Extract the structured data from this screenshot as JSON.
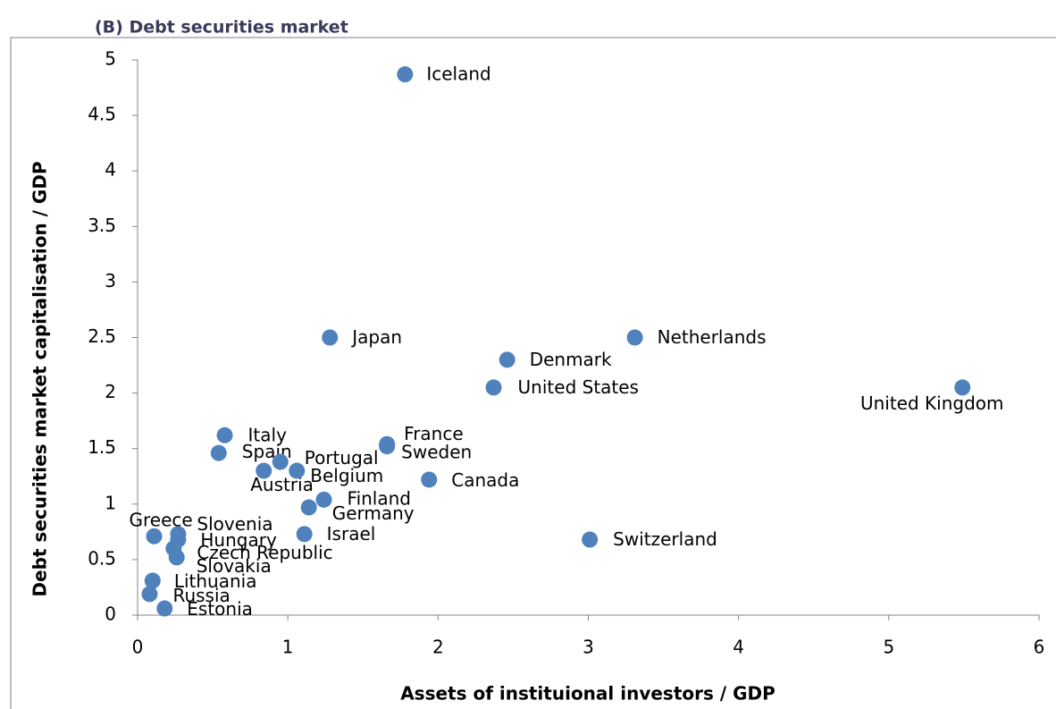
{
  "chart_data": {
    "type": "scatter",
    "title": "(B) Debt securities market",
    "x_label": "Assets of instituional investors / GDP",
    "y_label": "Debt securities market capitalisation / GDP",
    "color": "#4f81bd",
    "xlim": [
      0,
      6
    ],
    "xticks": [
      0,
      1,
      2,
      3,
      4,
      5,
      6
    ],
    "ylim": [
      0,
      5
    ],
    "yticks": [
      0,
      0.5,
      1,
      1.5,
      2,
      2.5,
      3,
      3.5,
      4,
      4.5,
      5
    ],
    "grid": false,
    "points": [
      {
        "label": "Iceland",
        "x": 1.78,
        "y": 4.87
      },
      {
        "label": "Japan",
        "x": 1.28,
        "y": 2.5
      },
      {
        "label": "Netherlands",
        "x": 3.31,
        "y": 2.5
      },
      {
        "label": "Denmark",
        "x": 2.46,
        "y": 2.3
      },
      {
        "label": "United States",
        "x": 2.37,
        "y": 2.05
      },
      {
        "label": "United Kingdom",
        "x": 5.49,
        "y": 2.05
      },
      {
        "label": "Italy",
        "x": 0.58,
        "y": 1.62
      },
      {
        "label": "France",
        "x": 1.66,
        "y": 1.54
      },
      {
        "label": "Sweden",
        "x": 1.66,
        "y": 1.52
      },
      {
        "label": "Spain",
        "x": 0.54,
        "y": 1.46
      },
      {
        "label": "Portugal",
        "x": 0.95,
        "y": 1.38
      },
      {
        "label": "Austria",
        "x": 0.84,
        "y": 1.3
      },
      {
        "label": "Belgium",
        "x": 1.06,
        "y": 1.3
      },
      {
        "label": "Canada",
        "x": 1.94,
        "y": 1.22
      },
      {
        "label": "Finland",
        "x": 1.24,
        "y": 1.04
      },
      {
        "label": "Germany",
        "x": 1.14,
        "y": 0.97
      },
      {
        "label": "Switzerland",
        "x": 3.01,
        "y": 0.68
      },
      {
        "label": "Israel",
        "x": 1.11,
        "y": 0.73
      },
      {
        "label": "Greece",
        "x": 0.11,
        "y": 0.71
      },
      {
        "label": "Slovenia",
        "x": 0.27,
        "y": 0.73
      },
      {
        "label": "Hungary",
        "x": 0.27,
        "y": 0.68
      },
      {
        "label": "Czech Republic",
        "x": 0.24,
        "y": 0.6
      },
      {
        "label": "Slovakia",
        "x": 0.26,
        "y": 0.52
      },
      {
        "label": "Lithuania",
        "x": 0.1,
        "y": 0.31
      },
      {
        "label": "Russia",
        "x": 0.08,
        "y": 0.19
      },
      {
        "label": "Estonia",
        "x": 0.18,
        "y": 0.06
      }
    ]
  }
}
